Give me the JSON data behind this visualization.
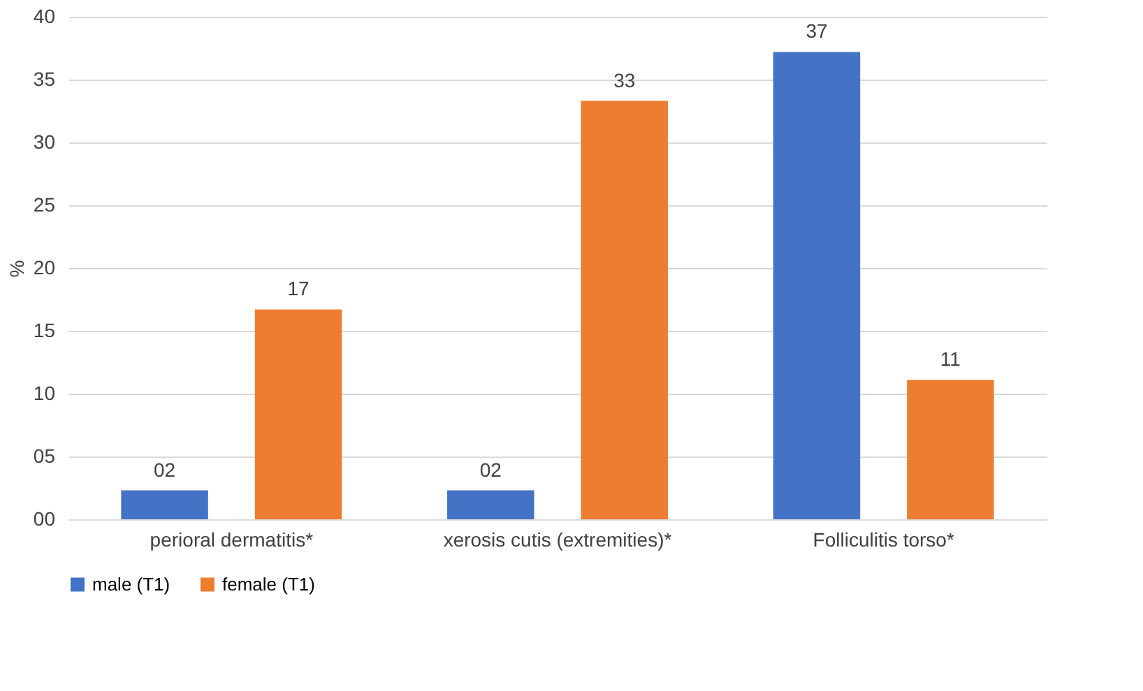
{
  "chart_data": {
    "type": "bar",
    "categories": [
      "perioral dermatitis*",
      "xerosis cutis (extremities)*",
      "Folliculitis torso*"
    ],
    "series": [
      {
        "name": "male (T1)",
        "color": "#4472c4",
        "values": [
          2.3,
          2.3,
          37.2
        ],
        "value_labels": [
          "02",
          "02",
          "37"
        ]
      },
      {
        "name": "female (T1)",
        "color": "#ed7d31",
        "values": [
          16.7,
          33.3,
          11.1
        ],
        "value_labels": [
          "17",
          "33",
          "11"
        ]
      }
    ],
    "ylabel": "%",
    "ylim": [
      0,
      40
    ],
    "yticks": [
      {
        "value": 0,
        "label": "00"
      },
      {
        "value": 5,
        "label": "05"
      },
      {
        "value": 10,
        "label": "10"
      },
      {
        "value": 15,
        "label": "15"
      },
      {
        "value": 20,
        "label": "20"
      },
      {
        "value": 25,
        "label": "25"
      },
      {
        "value": 30,
        "label": "30"
      },
      {
        "value": 35,
        "label": "35"
      },
      {
        "value": 40,
        "label": "40"
      }
    ],
    "grid": "y",
    "legend": "bottom"
  }
}
